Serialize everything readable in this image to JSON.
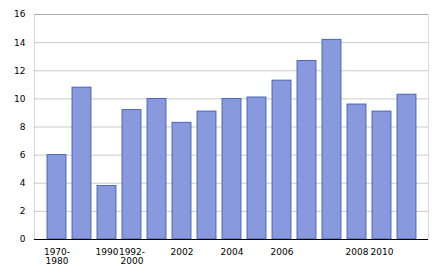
{
  "chart_data": {
    "type": "bar",
    "categories": [
      "1970-\n1980",
      null,
      "1990",
      "1992-\n2000",
      null,
      "2002",
      null,
      "2004",
      null,
      "2006",
      null,
      null,
      "2008",
      "2010",
      null
    ],
    "values": [
      6.0,
      10.8,
      3.8,
      9.2,
      10.0,
      8.3,
      9.1,
      10.0,
      10.1,
      11.3,
      12.7,
      14.2,
      9.6,
      9.1,
      10.3
    ],
    "color": "#8899dd",
    "ylim": [
      0,
      16
    ],
    "yticks": [
      0,
      2,
      4,
      6,
      8,
      10,
      12,
      14,
      16
    ],
    "grid": true
  }
}
